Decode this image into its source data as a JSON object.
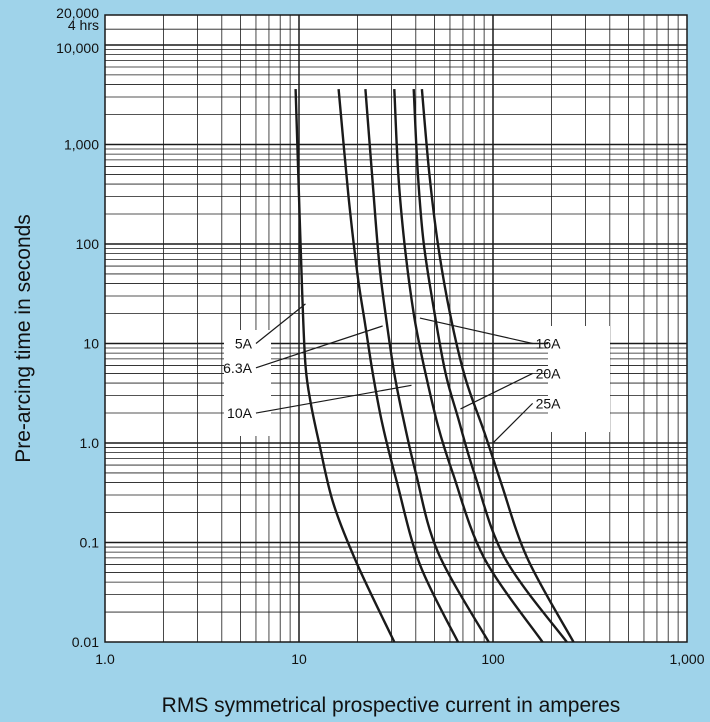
{
  "chart_data": {
    "type": "line",
    "title": "",
    "xlabel": "RMS symmetrical prospective current in amperes",
    "ylabel": "Pre-arcing time in seconds",
    "x_scale": "log",
    "y_scale": "log",
    "xlim": [
      1,
      1000
    ],
    "ylim": [
      0.01,
      20000
    ],
    "grid": true,
    "background_color": "#9fd3ea",
    "plot_color": "#ffffff",
    "line_color": "#1a1a1a",
    "x_ticks": [
      {
        "value": 1,
        "label": "1.0"
      },
      {
        "value": 10,
        "label": "10"
      },
      {
        "value": 100,
        "label": "100"
      },
      {
        "value": 1000,
        "label": "1,000"
      }
    ],
    "y_ticks": [
      {
        "value": 0.01,
        "label": "0.01"
      },
      {
        "value": 0.1,
        "label": "0.1"
      },
      {
        "value": 1,
        "label": "1.0"
      },
      {
        "value": 10,
        "label": "10"
      },
      {
        "value": 100,
        "label": "100"
      },
      {
        "value": 1000,
        "label": "1,000"
      },
      {
        "value": 10000,
        "label": "10,000"
      },
      {
        "value": 14400,
        "label": "4 hrs"
      },
      {
        "value": 20000,
        "label": "20,000"
      }
    ],
    "series": [
      {
        "name": "5A",
        "points": [
          [
            9.6,
            3600
          ],
          [
            10.0,
            300
          ],
          [
            10.4,
            30
          ],
          [
            10.8,
            6
          ],
          [
            11.5,
            2.5
          ],
          [
            12.7,
            1.0
          ],
          [
            15.0,
            0.25
          ],
          [
            20.0,
            0.06
          ],
          [
            31.0,
            0.01
          ]
        ],
        "label_value": [
          6,
          10
        ],
        "pointer_value": [
          10.8,
          25
        ]
      },
      {
        "name": "6.3A",
        "points": [
          [
            16.0,
            3600
          ],
          [
            18.0,
            300
          ],
          [
            20.0,
            50
          ],
          [
            22.0,
            15
          ],
          [
            24.0,
            5
          ],
          [
            27.0,
            1.5
          ],
          [
            32.0,
            0.4
          ],
          [
            42.0,
            0.06
          ],
          [
            66.0,
            0.01
          ]
        ],
        "label_value": [
          6,
          5.7
        ],
        "pointer_value": [
          27,
          15
        ]
      },
      {
        "name": "10A",
        "points": [
          [
            22.0,
            3600
          ],
          [
            24.0,
            400
          ],
          [
            26.0,
            60
          ],
          [
            28.5,
            15
          ],
          [
            31.0,
            5
          ],
          [
            34.0,
            2
          ],
          [
            40.0,
            0.5
          ],
          [
            52.0,
            0.08
          ],
          [
            95.0,
            0.01
          ]
        ],
        "label_value": [
          6,
          2
        ],
        "pointer_value": [
          38,
          3.8
        ]
      },
      {
        "name": "16A",
        "points": [
          [
            31.0,
            3600
          ],
          [
            32.5,
            500
          ],
          [
            35.0,
            100
          ],
          [
            39.0,
            20
          ],
          [
            44.0,
            6
          ],
          [
            52.0,
            1.5
          ],
          [
            62.0,
            0.5
          ],
          [
            90.0,
            0.07
          ],
          [
            180.0,
            0.01
          ]
        ],
        "label_value": [
          160,
          10
        ],
        "pointer_value": [
          42,
          18
        ]
      },
      {
        "name": "20A",
        "points": [
          [
            39.0,
            3600
          ],
          [
            41.0,
            500
          ],
          [
            44.0,
            100
          ],
          [
            50.0,
            20
          ],
          [
            57.0,
            5
          ],
          [
            66.0,
            1.8
          ],
          [
            80.0,
            0.5
          ],
          [
            115.0,
            0.07
          ],
          [
            240.0,
            0.01
          ]
        ],
        "label_value": [
          160,
          5
        ],
        "pointer_value": [
          68,
          2.2
        ]
      },
      {
        "name": "25A",
        "points": [
          [
            43.0,
            3600
          ],
          [
            47.0,
            500
          ],
          [
            52.0,
            100
          ],
          [
            60.0,
            20
          ],
          [
            72.0,
            4.5
          ],
          [
            90.0,
            1.3
          ],
          [
            110.0,
            0.4
          ],
          [
            150.0,
            0.07
          ],
          [
            260.0,
            0.01
          ]
        ],
        "label_value": [
          160,
          2.5
        ],
        "pointer_value": [
          100,
          1.0
        ]
      }
    ]
  }
}
